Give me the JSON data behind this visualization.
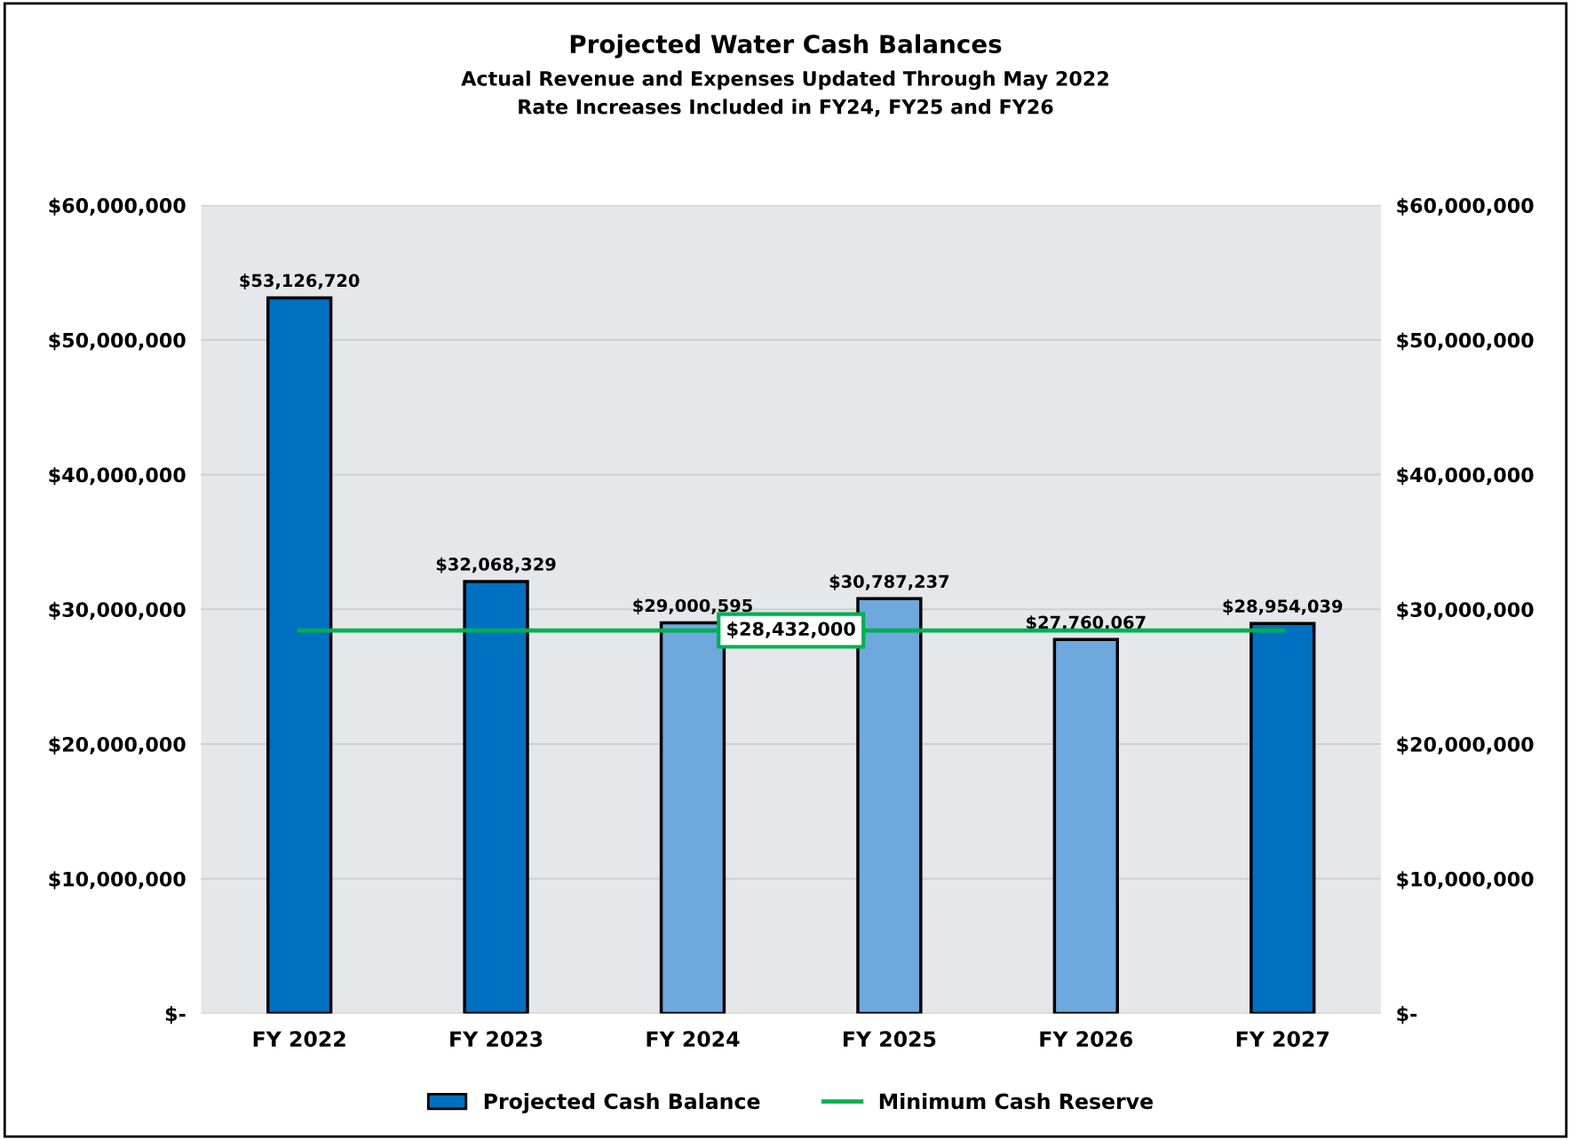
{
  "chart_data": {
    "type": "bar",
    "title": "Projected Water Cash Balances",
    "subtitle": "Actual Revenue and Expenses Updated Through May 2022\nRate Increases Included in FY24, FY25 and FY26",
    "categories": [
      "FY 2022",
      "FY 2023",
      "FY 2024",
      "FY 2025",
      "FY 2026",
      "FY 2027"
    ],
    "series": [
      {
        "name": "Projected Cash Balance",
        "color": "#0070c0",
        "colors": [
          "#0070c0",
          "#0070c0",
          "#6fa8dc",
          "#6fa8dc",
          "#6fa8dc",
          "#0070c0"
        ],
        "values": [
          53126720,
          32068329,
          29000595,
          30787237,
          27760067,
          28954039
        ],
        "value_labels": [
          "$53,126,720",
          "$32,068,329",
          "$29,000,595",
          "$30,787,237",
          "$27,760,067",
          "$28,954,039"
        ]
      },
      {
        "name": "Minimum Cash Reserve",
        "type": "line",
        "color": "#00b050",
        "values": [
          28432000,
          28432000,
          28432000,
          28432000,
          28432000,
          28432000
        ]
      }
    ],
    "annotations": [
      {
        "text": "$28,432,000",
        "y": 28432000
      }
    ],
    "ylim": [
      0,
      60000000
    ],
    "yticks": [
      {
        "value": 0,
        "label": "$-"
      },
      {
        "value": 10000000,
        "label": "$10,000,000"
      },
      {
        "value": 20000000,
        "label": "$20,000,000"
      },
      {
        "value": 30000000,
        "label": "$30,000,000"
      },
      {
        "value": 40000000,
        "label": "$40,000,000"
      },
      {
        "value": 50000000,
        "label": "$50,000,000"
      },
      {
        "value": 60000000,
        "label": "$60,000,000"
      }
    ],
    "y2lim": [
      0,
      60000000
    ],
    "y2ticks": [
      {
        "value": 0,
        "label": "$-"
      },
      {
        "value": 10000000,
        "label": "$10,000,000"
      },
      {
        "value": 20000000,
        "label": "$20,000,000"
      },
      {
        "value": 30000000,
        "label": "$30,000,000"
      },
      {
        "value": 40000000,
        "label": "$40,000,000"
      },
      {
        "value": 50000000,
        "label": "$50,000,000"
      },
      {
        "value": 60000000,
        "label": "$60,000,000"
      }
    ],
    "grid": "y",
    "legend": "bottom"
  }
}
